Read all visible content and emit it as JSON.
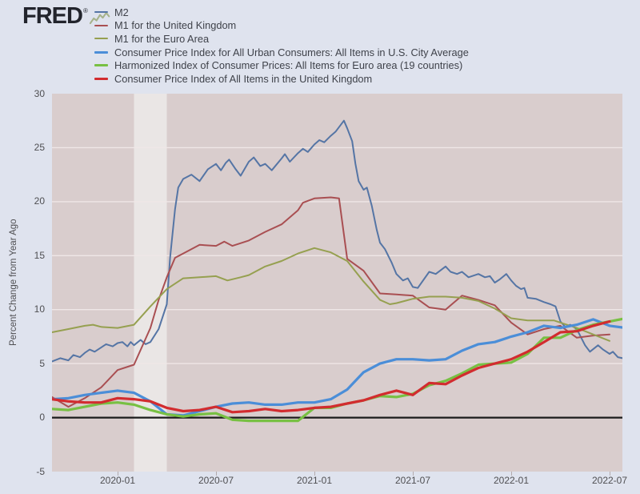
{
  "brand": {
    "logo_text": "FRED",
    "registered_mark": "®"
  },
  "styles": {
    "page_bg": "#dfe3ee",
    "plot_bg": "#d9cdcd",
    "band_color": "#eae6e5",
    "grid_color": "#efe7e7",
    "zero_line_color": "#1b1b1b",
    "axis_text_color": "#4f4f52",
    "legend_text_color": "#3f424a",
    "logo_color": "#22242c",
    "logo_sparkline_color": "#a6b28b"
  },
  "legend": [
    {
      "key": "m2",
      "label": "M2",
      "color": "#5575a5",
      "thickness": 2
    },
    {
      "key": "m1-uk",
      "label": "M1 for the United Kingdom",
      "color": "#a94f52",
      "thickness": 2
    },
    {
      "key": "m1-euro",
      "label": "M1 for the Euro Area",
      "color": "#96a050",
      "thickness": 2
    },
    {
      "key": "cpi-us",
      "label": "Consumer Price Index for All Urban Consumers: All Items in U.S. City Average",
      "color": "#4b8ed8",
      "thickness": 3
    },
    {
      "key": "hicp-euro",
      "label": "Harmonized Index of Consumer Prices: All Items for Euro area (19 countries)",
      "color": "#78c043",
      "thickness": 3
    },
    {
      "key": "cpi-uk",
      "label": "Consumer Price Index of All Items in the United Kingdom",
      "color": "#d22c2f",
      "thickness": 3
    }
  ],
  "y_axis": {
    "title": "Percent Change from Year Ago",
    "ticks": [
      30,
      25,
      20,
      15,
      10,
      5,
      0,
      -5
    ],
    "grid_values": [
      25,
      20,
      15,
      10,
      5
    ],
    "min": -5,
    "max": 30
  },
  "x_axis": {
    "ticks": [
      {
        "label": "2020-01",
        "month": 4
      },
      {
        "label": "2020-07",
        "month": 10
      },
      {
        "label": "2021-01",
        "month": 16
      },
      {
        "label": "2021-07",
        "month": 22
      },
      {
        "label": "2022-01",
        "month": 28
      },
      {
        "label": "2022-07",
        "month": 34
      }
    ]
  },
  "recession_band": {
    "start_month": 5.0,
    "end_month": 7.0
  },
  "chart_data": {
    "type": "line",
    "x_unit": "month index: 0 = 2019-09, 1 unit = 1 month, 35 = 2022-08",
    "ylabel": "Percent Change from Year Ago",
    "ylim": [
      -5,
      30
    ],
    "xlim": [
      0,
      35
    ],
    "grid": true,
    "legend_position": "top-left",
    "series": [
      {
        "key": "m2",
        "name": "M2",
        "color": "#5575a5",
        "width": 2,
        "x": [
          0,
          0.5,
          1,
          1.3,
          1.7,
          2,
          2.3,
          2.6,
          3,
          3.3,
          3.7,
          4,
          4.3,
          4.6,
          4.8,
          5,
          5.4,
          5.7,
          6,
          6.5,
          7,
          7.2,
          7.5,
          7.7,
          8,
          8.5,
          9,
          9.5,
          10,
          10.3,
          10.6,
          10.8,
          11.2,
          11.5,
          12,
          12.3,
          12.7,
          13,
          13.4,
          14,
          14.2,
          14.5,
          15,
          15.3,
          15.6,
          16,
          16.3,
          16.6,
          17,
          17.3,
          17.8,
          18,
          18.3,
          18.5,
          18.7,
          19,
          19.2,
          19.5,
          19.8,
          20,
          20.3,
          20.7,
          21,
          21.4,
          21.7,
          22,
          22.3,
          23,
          23.4,
          24,
          24.3,
          24.7,
          25,
          25.4,
          26,
          26.4,
          26.7,
          27,
          27.3,
          27.7,
          28,
          28.3,
          28.6,
          28.8,
          29,
          29.5,
          30,
          30.4,
          30.7,
          31,
          31.3,
          31.6,
          32,
          32.5,
          32.8,
          33.3,
          33.6,
          34,
          34.2,
          34.5,
          34.8,
          35
        ],
        "values": [
          5.2,
          5.5,
          5.3,
          5.8,
          5.6,
          6.0,
          6.3,
          6.1,
          6.5,
          6.8,
          6.6,
          6.9,
          7.0,
          6.6,
          7.0,
          6.7,
          7.2,
          6.8,
          7.0,
          8.2,
          10.5,
          14.8,
          19.3,
          21.3,
          22.1,
          22.5,
          21.9,
          23.0,
          23.5,
          22.9,
          23.6,
          23.9,
          23.0,
          22.4,
          23.7,
          24.1,
          23.3,
          23.5,
          22.9,
          24.0,
          24.4,
          23.7,
          24.5,
          24.9,
          24.6,
          25.3,
          25.7,
          25.5,
          26.1,
          26.5,
          27.5,
          26.8,
          25.6,
          23.5,
          21.9,
          21.1,
          21.3,
          19.6,
          17.4,
          16.2,
          15.6,
          14.4,
          13.3,
          12.7,
          12.9,
          12.1,
          12.0,
          13.5,
          13.3,
          14.0,
          13.5,
          13.3,
          13.5,
          13.0,
          13.3,
          13.0,
          13.1,
          12.5,
          12.8,
          13.3,
          12.7,
          12.2,
          11.9,
          12.0,
          11.1,
          11.0,
          10.7,
          10.5,
          10.3,
          8.9,
          8.4,
          8.6,
          8.2,
          6.7,
          6.1,
          6.7,
          6.3,
          5.9,
          6.1,
          5.6,
          5.5,
          5.1
        ]
      },
      {
        "key": "m1-uk",
        "name": "M1 for the United Kingdom",
        "color": "#a94f52",
        "width": 2,
        "x": [
          0,
          1,
          2,
          3,
          4,
          5,
          6,
          6.5,
          7,
          7.5,
          8,
          9,
          10,
          10.5,
          11,
          12,
          13,
          14,
          15,
          15.3,
          16,
          17,
          17.5,
          18,
          19,
          20,
          21,
          22,
          23,
          24,
          25,
          26,
          27,
          28,
          29,
          30,
          31,
          32,
          33,
          34
        ],
        "values": [
          1.9,
          1.0,
          1.8,
          2.8,
          4.4,
          4.9,
          8.3,
          10.9,
          13.0,
          14.8,
          15.2,
          16.0,
          15.9,
          16.3,
          15.9,
          16.4,
          17.2,
          17.9,
          19.2,
          19.9,
          20.3,
          20.4,
          20.3,
          14.7,
          13.6,
          11.5,
          11.4,
          11.3,
          10.2,
          10.0,
          11.3,
          10.9,
          10.4,
          8.8,
          7.7,
          8.2,
          8.5,
          7.4,
          7.6,
          7.7
        ]
      },
      {
        "key": "m1-euro",
        "name": "M1 for the Euro Area",
        "color": "#96a050",
        "width": 2,
        "x": [
          0,
          1,
          2,
          2.5,
          3,
          4,
          5,
          6,
          7,
          8,
          9,
          10,
          10.7,
          11.5,
          12,
          13,
          14,
          15,
          16,
          17,
          18,
          19,
          20,
          20.6,
          21,
          22,
          23,
          24,
          25,
          26,
          27,
          28,
          29,
          30,
          30.6,
          31,
          32,
          33,
          34
        ],
        "values": [
          7.9,
          8.2,
          8.5,
          8.6,
          8.4,
          8.3,
          8.6,
          10.3,
          11.9,
          12.9,
          13.0,
          13.1,
          12.7,
          13.0,
          13.2,
          14.0,
          14.5,
          15.2,
          15.7,
          15.3,
          14.5,
          12.6,
          10.9,
          10.5,
          10.6,
          11.0,
          11.2,
          11.2,
          11.1,
          10.8,
          10.1,
          9.2,
          9.0,
          9.0,
          9.0,
          8.8,
          8.3,
          7.7,
          7.1
        ]
      },
      {
        "key": "cpi-us",
        "name": "Consumer Price Index for All Urban Consumers: All Items in U.S. City Average",
        "color": "#4b8ed8",
        "width": 3.2,
        "values": [
          1.7,
          1.8,
          2.1,
          2.3,
          2.5,
          2.3,
          1.5,
          0.3,
          0.2,
          0.6,
          1.0,
          1.3,
          1.4,
          1.2,
          1.2,
          1.4,
          1.4,
          1.7,
          2.6,
          4.2,
          5.0,
          5.4,
          5.4,
          5.3,
          5.4,
          6.2,
          6.8,
          7.0,
          7.5,
          7.9,
          8.5,
          8.3,
          8.6,
          9.1,
          8.5,
          8.3
        ]
      },
      {
        "key": "hicp-euro",
        "name": "Harmonized Index of Consumer Prices: All Items for Euro area (19 countries)",
        "color": "#78c043",
        "width": 3.2,
        "values": [
          0.8,
          0.7,
          1.0,
          1.3,
          1.4,
          1.2,
          0.7,
          0.3,
          0.1,
          0.3,
          0.4,
          -0.2,
          -0.3,
          -0.3,
          -0.3,
          -0.3,
          0.9,
          0.9,
          1.3,
          1.6,
          2.0,
          1.9,
          2.2,
          3.0,
          3.4,
          4.1,
          4.9,
          5.0,
          5.1,
          5.9,
          7.4,
          7.4,
          8.1,
          8.6,
          8.9,
          9.2
        ]
      },
      {
        "key": "cpi-uk",
        "name": "Consumer Price Index of All Items in the United Kingdom",
        "color": "#d22c2f",
        "width": 3.2,
        "values": [
          1.7,
          1.5,
          1.4,
          1.4,
          1.8,
          1.7,
          1.5,
          0.9,
          0.6,
          0.7,
          1.0,
          0.5,
          0.6,
          0.8,
          0.6,
          0.7,
          0.9,
          1.0,
          1.3,
          1.6,
          2.1,
          2.5,
          2.1,
          3.2,
          3.1,
          3.9,
          4.6,
          5.0,
          5.4,
          6.1,
          7.0,
          7.9,
          8.0,
          8.5,
          8.9
        ]
      }
    ]
  }
}
